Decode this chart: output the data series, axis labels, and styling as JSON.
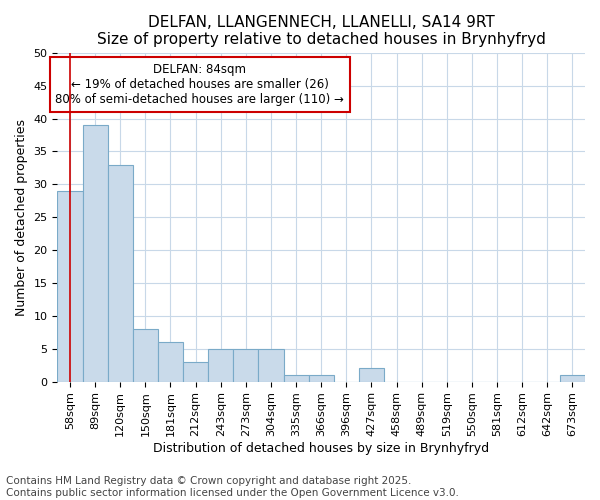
{
  "title1": "DELFAN, LLANGENNECH, LLANELLI, SA14 9RT",
  "title2": "Size of property relative to detached houses in Brynhyfryd",
  "xlabel": "Distribution of detached houses by size in Brynhyfryd",
  "ylabel": "Number of detached properties",
  "categories": [
    "58sqm",
    "89sqm",
    "120sqm",
    "150sqm",
    "181sqm",
    "212sqm",
    "243sqm",
    "273sqm",
    "304sqm",
    "335sqm",
    "366sqm",
    "396sqm",
    "427sqm",
    "458sqm",
    "489sqm",
    "519sqm",
    "550sqm",
    "581sqm",
    "612sqm",
    "642sqm",
    "673sqm"
  ],
  "values": [
    29,
    39,
    33,
    8,
    6,
    3,
    5,
    5,
    5,
    1,
    1,
    0,
    2,
    0,
    0,
    0,
    0,
    0,
    0,
    0,
    1
  ],
  "bar_color": "#c9daea",
  "bar_edge_color": "#7aaac8",
  "grid_color": "#c8d8e8",
  "background_color": "#ffffff",
  "annotation_line1": "DELFAN: 84sqm",
  "annotation_line2": "← 19% of detached houses are smaller (26)",
  "annotation_line3": "80% of semi-detached houses are larger (110) →",
  "vline_color": "#cc0000",
  "vline_x": 0.0,
  "annotation_box_facecolor": "#ffffff",
  "annotation_box_edgecolor": "#cc0000",
  "footer": "Contains HM Land Registry data © Crown copyright and database right 2025.\nContains public sector information licensed under the Open Government Licence v3.0.",
  "ylim": [
    0,
    50
  ],
  "yticks": [
    0,
    5,
    10,
    15,
    20,
    25,
    30,
    35,
    40,
    45,
    50
  ],
  "title_fontsize": 11,
  "subtitle_fontsize": 10,
  "axis_label_fontsize": 9,
  "tick_fontsize": 8,
  "annotation_fontsize": 8.5,
  "footer_fontsize": 7.5
}
